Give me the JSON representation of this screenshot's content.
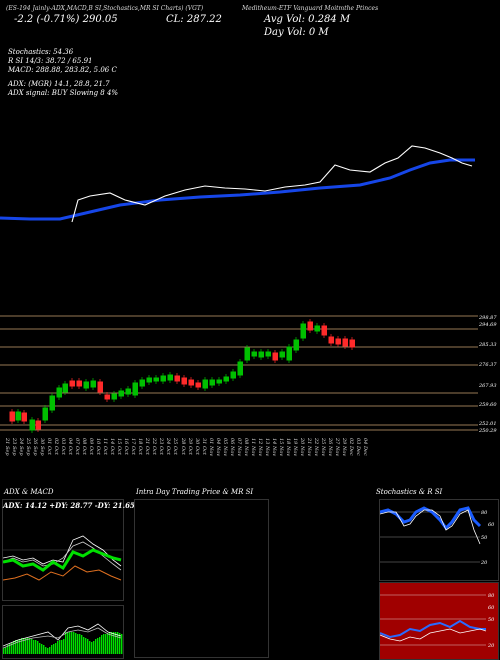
{
  "header": {
    "top_line": "(ES-194 Jainly-ADX,MACD,B SI,Stochastics,MR SI Charts) (VGT)",
    "sub_line": "Meditheum-ETF Vanguard Moitmthe Ptinces",
    "day_change": "-2.2 (-0.71%) 290.05",
    "close": "CL: 287.22",
    "avg_vol": "Avg Vol: 0.284 M",
    "day_vol": "Day Vol: 0 M"
  },
  "indicators": {
    "stochastics": "Stochastics: 54.36",
    "rsi": "R SI 14/3: 38.72 / 65.91",
    "macd": "MACD: 288.88, 283.82, 5.06 C",
    "adx": "ADX: (MGR) 14.1, 28.8, 21.7",
    "adx_signal": "ADX signal: BUY Slowing 8 4%"
  },
  "price_levels": [
    "298.87",
    "294.69",
    "285.33",
    "276.37",
    "267.93",
    "259.60",
    "252.01",
    "250.29"
  ],
  "dates": [
    "21 Sep",
    "23 Sep",
    "24 Sep",
    "25 Sep",
    "26 Sep",
    "30 Sep",
    "01 Oct",
    "02 Oct",
    "03 Oct",
    "04 Oct",
    "07 Oct",
    "08 Oct",
    "09 Oct",
    "10 Oct",
    "11 Oct",
    "14 Oct",
    "15 Oct",
    "16 Oct",
    "17 Oct",
    "18 Oct",
    "21 Oct",
    "22 Oct",
    "23 Oct",
    "24 Oct",
    "25 Oct",
    "28 Oct",
    "29 Oct",
    "30 Oct",
    "31 Oct",
    "01 Nov",
    "04 Nov",
    "05 Nov",
    "06 Nov",
    "07 Nov",
    "08 Nov",
    "11 Nov",
    "12 Nov",
    "13 Nov",
    "14 Nov",
    "15 Nov",
    "18 Nov",
    "19 Nov",
    "20 Nov",
    "21 Nov",
    "22 Nov",
    "25 Nov",
    "26 Nov",
    "27 Nov",
    "29 Nov",
    "02 Dec",
    "03 Dec",
    "04 Dec"
  ],
  "panels": {
    "adx_title": "ADX & MACD",
    "adx_values": "ADX: 14.12 +DY: 28.77 -DY: 21.65",
    "intraday_title": "Intra Day Trading Price & MR SI",
    "stoch_title": "Stochastics & R SI",
    "stoch_levels": [
      "80",
      "50",
      "20"
    ],
    "stoch_current": "60",
    "rsi_levels": [
      "80",
      "50",
      "20"
    ],
    "rsi_current": "60"
  },
  "colors": {
    "background": "#000000",
    "up_candle": "#00c000",
    "down_candle": "#ff2a2a",
    "ma_line": "#1646e8",
    "price_line": "#ffffff",
    "level_line": "#c8a070",
    "rsi_panel_bg": "#a00000",
    "stoch_panel_bg": "#1a1ae0",
    "adx_green": "#00e000",
    "adx_orange": "#e07020"
  }
}
